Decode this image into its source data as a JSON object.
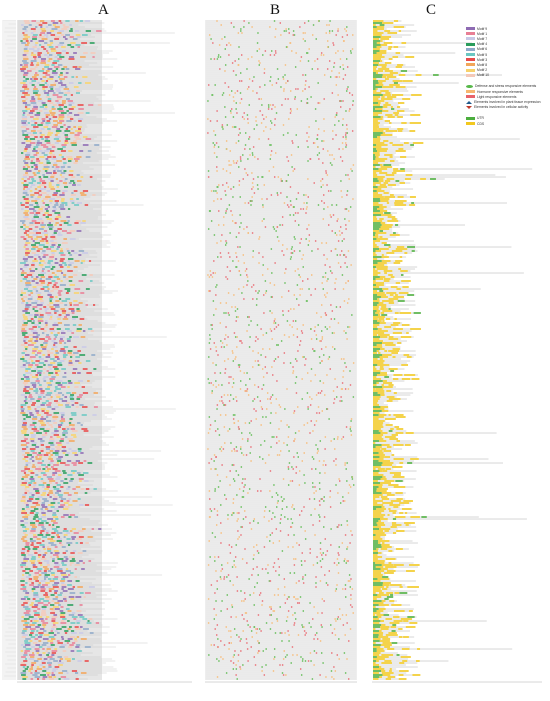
{
  "panels": {
    "a": {
      "label": "A"
    },
    "b": {
      "label": "B"
    },
    "c": {
      "label": "C"
    }
  },
  "motif_legend": [
    {
      "label": "Motif 9",
      "color": "#8e6bb3"
    },
    {
      "label": "Motif 1",
      "color": "#e87f95"
    },
    {
      "label": "Motif 7",
      "color": "#c8c8e6"
    },
    {
      "label": "Motif 4",
      "color": "#2a9d5c"
    },
    {
      "label": "Motif 6",
      "color": "#8fa9c9"
    },
    {
      "label": "Motif 5",
      "color": "#6bc7c2"
    },
    {
      "label": "Motif 3",
      "color": "#e84a4a"
    },
    {
      "label": "Motif 8",
      "color": "#f2a65a"
    },
    {
      "label": "Motif 2",
      "color": "#f7d26b"
    },
    {
      "label": "Motif 10",
      "color": "#f4c9b8"
    }
  ],
  "element_legend": [
    {
      "label": "Defense and stress responsive elements",
      "color": "#57b84a",
      "shape": "ellipse"
    },
    {
      "label": "Hormone responsive elements",
      "color": "#f7b76f",
      "shape": "rect"
    },
    {
      "label": "Light responsive elements",
      "color": "#e8636b",
      "shape": "rect"
    },
    {
      "label": "Elements involved in plant tissue expression",
      "color": "#1f5a8c",
      "shape": "tri-up"
    },
    {
      "label": "Elements involved in cellular activity",
      "color": "#c0392b",
      "shape": "tri-down"
    }
  ],
  "structure_legend": [
    {
      "label": "UTR",
      "color": "#4cae3e"
    },
    {
      "label": "CDS",
      "color": "#f2c81f"
    }
  ]
}
